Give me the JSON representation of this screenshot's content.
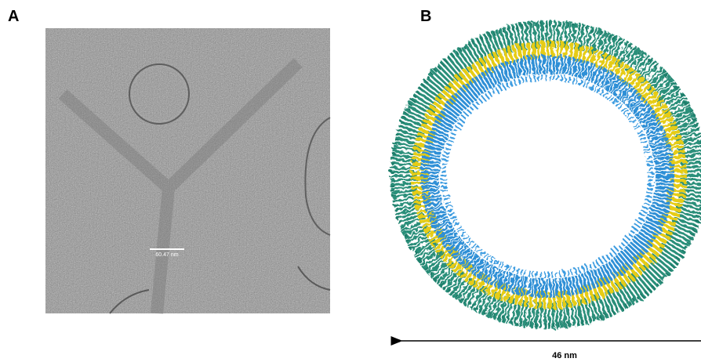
{
  "panels": [
    {
      "label": "A",
      "scale_bar": "60.47 nm"
    },
    {
      "label": "B",
      "scale_bar": "46 nm"
    }
  ]
}
